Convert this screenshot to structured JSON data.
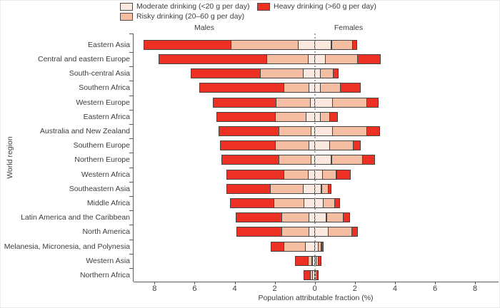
{
  "figure": {
    "males_header": "Males",
    "females_header": "Females",
    "y_axis_title": "World region",
    "x_axis_title": "Population attributable fraction (%)"
  },
  "legend": {
    "items": [
      {
        "key": "moderate",
        "label": "Moderate drinking (<20 g per day)",
        "color": "#fbe9e0"
      },
      {
        "key": "risky",
        "label": "Risky drinking (20–60 g per day)",
        "color": "#f5bda2"
      },
      {
        "key": "heavy",
        "label": "Heavy drinking (>60 g per day)",
        "color": "#ed3024"
      }
    ]
  },
  "colors": {
    "moderate": "#fbe9e0",
    "risky": "#f5bda2",
    "heavy": "#ed3024",
    "segment_border": "#454545",
    "axis": "#58595b",
    "text": "#3d3d3d",
    "zero_line": "#a4a6a9"
  },
  "chart_data": {
    "type": "bar",
    "variant": "diverging-stacked-horizontal",
    "title": "",
    "xlabel": "Population attributable fraction (%)",
    "ylabel": "World region",
    "x_tick_labels": [
      "8",
      "6",
      "4",
      "2",
      "0",
      "2",
      "4",
      "6",
      "8"
    ],
    "x_tick_values": [
      -8,
      -6,
      -4,
      -2,
      0,
      2,
      4,
      6,
      8
    ],
    "xlim": [
      -9.05,
      9.15
    ],
    "grid": false,
    "legend_position": "top",
    "zero_reference_line": true,
    "sides": {
      "left": "Males",
      "right": "Females"
    },
    "stack_order_from_zero": [
      "moderate",
      "risky",
      "heavy"
    ],
    "values_unit": "percent (population attributable fraction)",
    "regions": [
      {
        "name": "Eastern Asia",
        "males": {
          "moderate": 0.85,
          "risky": 3.35,
          "heavy": 4.35
        },
        "females": {
          "moderate": 0.85,
          "risky": 1.05,
          "heavy": 0.2
        }
      },
      {
        "name": "Central and eastern Europe",
        "males": {
          "moderate": 0.35,
          "risky": 2.05,
          "heavy": 5.4
        },
        "females": {
          "moderate": 0.55,
          "risky": 1.6,
          "heavy": 1.15
        }
      },
      {
        "name": "South-central Asia",
        "males": {
          "moderate": 0.6,
          "risky": 2.15,
          "heavy": 3.45
        },
        "females": {
          "moderate": 0.3,
          "risky": 0.65,
          "heavy": 0.25
        }
      },
      {
        "name": "Southern Africa",
        "males": {
          "moderate": 0.3,
          "risky": 1.25,
          "heavy": 4.2
        },
        "females": {
          "moderate": 0.3,
          "risky": 1.0,
          "heavy": 1.0
        }
      },
      {
        "name": "Western Europe",
        "males": {
          "moderate": 0.25,
          "risky": 1.7,
          "heavy": 3.15
        },
        "females": {
          "moderate": 0.9,
          "risky": 1.7,
          "heavy": 0.6
        }
      },
      {
        "name": "Eastern Africa",
        "males": {
          "moderate": 0.45,
          "risky": 1.55,
          "heavy": 2.9
        },
        "females": {
          "moderate": 0.3,
          "risky": 0.45,
          "heavy": 0.4
        }
      },
      {
        "name": "Australia and New Zealand",
        "males": {
          "moderate": 0.2,
          "risky": 1.6,
          "heavy": 3.0
        },
        "females": {
          "moderate": 0.9,
          "risky": 1.7,
          "heavy": 0.65
        }
      },
      {
        "name": "Southern Europe",
        "males": {
          "moderate": 0.3,
          "risky": 1.7,
          "heavy": 2.75
        },
        "females": {
          "moderate": 0.75,
          "risky": 1.2,
          "heavy": 0.35
        }
      },
      {
        "name": "Northern Europe",
        "males": {
          "moderate": 0.2,
          "risky": 1.6,
          "heavy": 2.85
        },
        "females": {
          "moderate": 0.85,
          "risky": 1.55,
          "heavy": 0.6
        }
      },
      {
        "name": "Western Africa",
        "males": {
          "moderate": 0.35,
          "risky": 1.2,
          "heavy": 2.85
        },
        "females": {
          "moderate": 0.4,
          "risky": 0.7,
          "heavy": 0.7
        }
      },
      {
        "name": "Southeastern Asia",
        "males": {
          "moderate": 0.6,
          "risky": 1.65,
          "heavy": 2.15
        },
        "females": {
          "moderate": 0.35,
          "risky": 0.35,
          "heavy": 0.15
        }
      },
      {
        "name": "Middle Africa",
        "males": {
          "moderate": 0.55,
          "risky": 1.5,
          "heavy": 2.2
        },
        "females": {
          "moderate": 0.45,
          "risky": 0.55,
          "heavy": 0.25
        }
      },
      {
        "name": "Latin America and the Caribbean",
        "males": {
          "moderate": 0.3,
          "risky": 1.35,
          "heavy": 2.3
        },
        "females": {
          "moderate": 0.6,
          "risky": 0.85,
          "heavy": 0.3
        }
      },
      {
        "name": "North America",
        "males": {
          "moderate": 0.3,
          "risky": 1.35,
          "heavy": 2.25
        },
        "females": {
          "moderate": 0.7,
          "risky": 1.15,
          "heavy": 0.3
        }
      },
      {
        "name": "Melanesia, Micronesia, and Polynesia",
        "males": {
          "moderate": 0.5,
          "risky": 1.05,
          "heavy": 0.65
        },
        "females": {
          "moderate": 0.2,
          "risky": 0.15,
          "heavy": 0.1
        }
      },
      {
        "name": "Western Asia",
        "males": {
          "moderate": 0.15,
          "risky": 0.2,
          "heavy": 0.65
        },
        "females": {
          "moderate": 0.08,
          "risky": 0.12,
          "heavy": 0.15
        }
      },
      {
        "name": "Northern Africa",
        "males": {
          "moderate": 0.13,
          "risky": 0.12,
          "heavy": 0.32
        },
        "females": {
          "moderate": 0.05,
          "risky": 0.06,
          "heavy": 0.08
        }
      }
    ]
  }
}
